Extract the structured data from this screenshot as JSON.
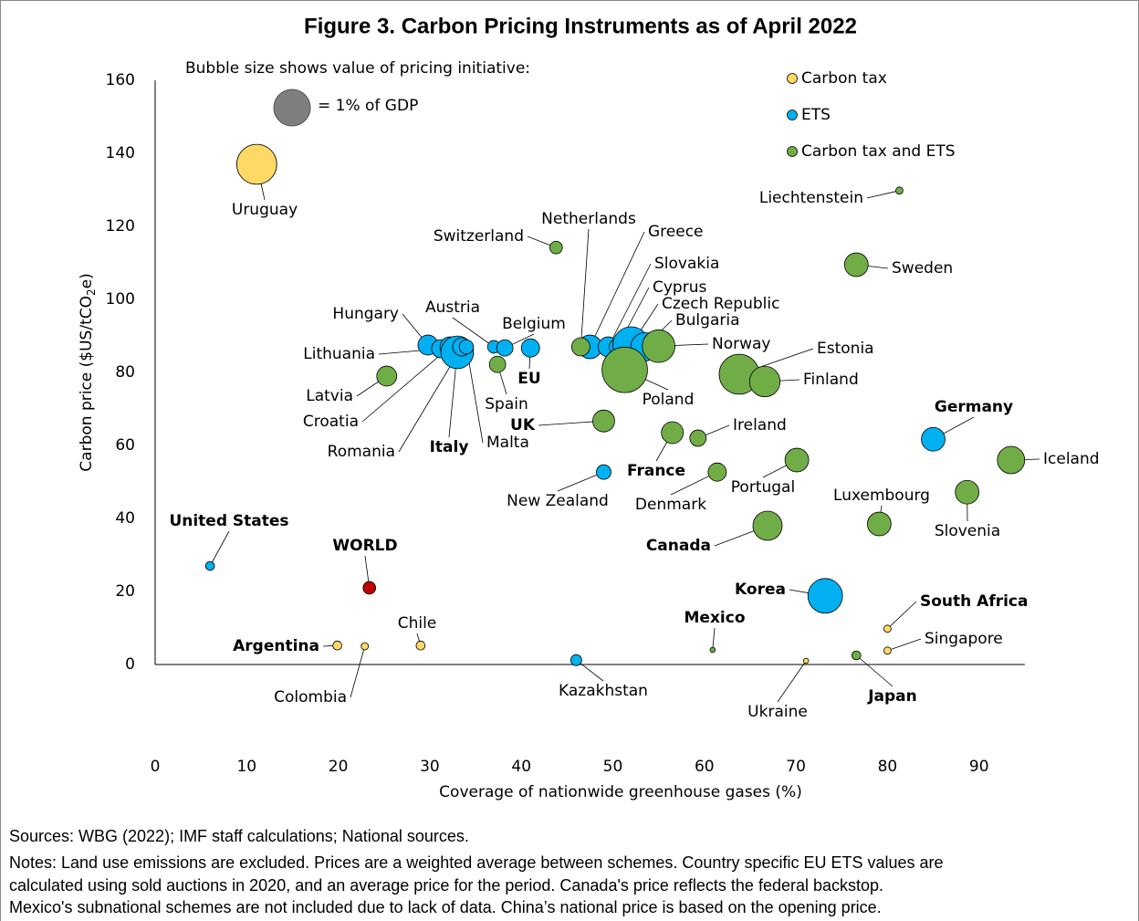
{
  "chart_data": {
    "type": "bubble",
    "title": "Figure 3. Carbon Pricing Instruments as of April 2022",
    "size_note": "Bubble size shows value of pricing initiative:",
    "size_legend": {
      "label": "= 1% of GDP",
      "size": 1,
      "color": "#7f7f7f"
    },
    "x_label": "Coverage of nationwide greenhouse gases (%)",
    "y_label": [
      "Carbon price ($US/tCO",
      "2",
      "e)"
    ],
    "xlim": [
      0,
      95
    ],
    "ylim": [
      0,
      160
    ],
    "xticks": [
      0,
      10,
      20,
      30,
      40,
      50,
      60,
      70,
      80,
      90
    ],
    "yticks": [
      0,
      20,
      40,
      60,
      80,
      100,
      120,
      140,
      160
    ],
    "grid": false,
    "series": [
      {
        "name": "Carbon tax",
        "color": "#ffd966",
        "labels": [
          "Uruguay",
          "Argentina",
          "Colombia",
          "Chile",
          "South Africa",
          "Singapore",
          "Ukraine"
        ],
        "x": [
          11.1,
          19.9,
          22.9,
          29,
          80,
          80,
          71.1
        ],
        "values": [
          137,
          5.2,
          5,
          5.2,
          9.8,
          3.8,
          1
        ],
        "sizes": [
          1.2,
          0.06,
          0.04,
          0.06,
          0.04,
          0.04,
          0.02
        ]
      },
      {
        "name": "ETS",
        "color": "#00b0f0",
        "labels": [
          "United States",
          "Kazakhstan",
          "New Zealand",
          "Korea",
          "Germany",
          "Hungary",
          "Lithuania",
          "Croatia",
          "Italy",
          "Romania",
          "Malta",
          "Austria",
          "Belgium",
          "EU",
          "Greece",
          "Slovakia",
          "Cyprus",
          "Czech Republic",
          "Bulgaria"
        ],
        "x": [
          6,
          46,
          49,
          73.2,
          85,
          29.8,
          31.2,
          32.2,
          33,
          33.5,
          34,
          37,
          38.2,
          41,
          47.5,
          49.5,
          50.5,
          52,
          53.5
        ],
        "values": [
          27,
          1.2,
          52.7,
          18.8,
          61.7,
          87.5,
          86.5,
          87,
          85.5,
          87,
          87,
          87,
          86.7,
          86.7,
          87,
          87,
          87,
          87.5,
          87
        ],
        "sizes": [
          0.06,
          0.09,
          0.16,
          0.9,
          0.42,
          0.3,
          0.25,
          0.3,
          0.8,
          0.25,
          0.15,
          0.12,
          0.2,
          0.25,
          0.42,
          0.3,
          0.2,
          1.0,
          0.6
        ]
      },
      {
        "name": "Carbon tax and ETS",
        "color": "#70ad47",
        "labels": [
          "Netherlands",
          "Switzerland",
          "Liechtenstein",
          "Sweden",
          "Norway",
          "Poland",
          "Estonia",
          "Finland",
          "Latvia",
          "Spain",
          "UK",
          "France",
          "Ireland",
          "Denmark",
          "Portugal",
          "Iceland",
          "Slovenia",
          "Luxembourg",
          "Canada",
          "Mexico",
          "Japan"
        ],
        "x": [
          46.5,
          43.8,
          81.3,
          76.6,
          55,
          51.3,
          63.8,
          66.6,
          25.3,
          37.4,
          49,
          56.5,
          59.3,
          61.4,
          70.1,
          93.5,
          88.7,
          79.1,
          66.9,
          60.9,
          76.6
        ],
        "values": [
          87,
          114.2,
          129.8,
          109.5,
          87.2,
          80.7,
          79.5,
          77.5,
          79,
          82.2,
          66.7,
          63.5,
          62,
          52.7,
          56,
          56,
          47.2,
          38.5,
          38,
          4,
          2.5
        ],
        "sizes": [
          0.25,
          0.12,
          0.04,
          0.42,
          0.8,
          1.55,
          1.2,
          0.7,
          0.3,
          0.2,
          0.36,
          0.36,
          0.2,
          0.25,
          0.42,
          0.56,
          0.42,
          0.42,
          0.64,
          0.02,
          0.06
        ]
      }
    ],
    "highlight": {
      "label": "WORLD",
      "x": 23.4,
      "y": 21,
      "size": 0.12,
      "color": "#c00000"
    },
    "sources": "Sources: WBG (2022); IMF staff calculations; National sources.",
    "notes": [
      "Notes: Land use emissions are excluded. Prices are a weighted average between schemes. Country specific EU ETS values are",
      "calculated using sold auctions in 2020, and an average price for the period. Canada's price reflects the federal backstop.",
      "Mexico's subnational schemes are not included due to lack of data. China’s national price is based on the opening price."
    ]
  }
}
